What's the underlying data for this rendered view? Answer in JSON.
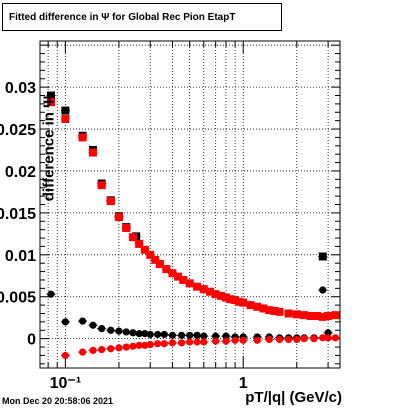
{
  "chart_data": {
    "type": "scatter",
    "title": "Fitted difference in  Ψ  for Global Rec Pion EtapT",
    "xlabel": "pT/|q| (GeV/c)",
    "ylabel": "difference in  Ψ",
    "xscale": "log",
    "xlim": [
      0.072,
      3.5
    ],
    "ylim": [
      -0.0035,
      0.0355
    ],
    "grid": true,
    "x_tick_labels": [
      "10⁻¹",
      "1"
    ],
    "x_tick_values": [
      0.1,
      1
    ],
    "y_tick_labels": [
      "0",
      "0.005",
      "0.01",
      "0.015",
      "0.02",
      "0.025",
      "0.03"
    ],
    "y_tick_values": [
      0,
      0.005,
      0.01,
      0.015,
      0.02,
      0.025,
      0.03
    ],
    "series": [
      {
        "color": "#000000",
        "marker": "square",
        "x": [
          0.083,
          0.1,
          0.125,
          0.143,
          0.16,
          0.18,
          0.2,
          0.22,
          0.25,
          2.8
        ],
        "y": [
          0.029,
          0.0272,
          0.0242,
          0.0225,
          0.0185,
          0.0165,
          0.0146,
          0.0133,
          0.0122,
          0.0098
        ]
      },
      {
        "color": "#ff0000",
        "marker": "square",
        "x": [
          0.083,
          0.1,
          0.125,
          0.143,
          0.16,
          0.18,
          0.2,
          0.22,
          0.24,
          0.26,
          0.28,
          0.3,
          0.32,
          0.34,
          0.37,
          0.4,
          0.43,
          0.46,
          0.5,
          0.55,
          0.6,
          0.65,
          0.7,
          0.75,
          0.8,
          0.85,
          0.9,
          0.95,
          1.0,
          1.1,
          1.2,
          1.3,
          1.4,
          1.5,
          1.6,
          1.8,
          2.0,
          2.2,
          2.4,
          2.6,
          2.8,
          3.0,
          3.3
        ],
        "y": [
          0.0282,
          0.0262,
          0.024,
          0.0222,
          0.0183,
          0.0164,
          0.0145,
          0.0132,
          0.0121,
          0.0113,
          0.0106,
          0.01,
          0.0094,
          0.0089,
          0.0083,
          0.0078,
          0.0074,
          0.007,
          0.0066,
          0.0062,
          0.0059,
          0.0056,
          0.0053,
          0.0051,
          0.0049,
          0.0047,
          0.0046,
          0.0044,
          0.0043,
          0.004,
          0.0038,
          0.0036,
          0.0034,
          0.0033,
          0.0032,
          0.003,
          0.0029,
          0.0028,
          0.0027,
          0.0027,
          0.0026,
          0.0027,
          0.0028
        ]
      },
      {
        "color": "#000000",
        "marker": "circle",
        "x": [
          0.083,
          0.1,
          0.125,
          0.143,
          0.16,
          0.18,
          0.2,
          0.22,
          0.24,
          0.26,
          0.28,
          0.3,
          0.33,
          0.36,
          0.4,
          0.45,
          0.5,
          0.55,
          0.6,
          0.7,
          0.8,
          0.9,
          1.0,
          1.2,
          1.4,
          1.6,
          1.8,
          2.0,
          2.2,
          2.5,
          2.8,
          3.0
        ],
        "y": [
          0.0053,
          0.002,
          0.0021,
          0.0016,
          0.0012,
          0.001,
          0.0009,
          0.0008,
          0.0007,
          0.0006,
          0.0006,
          0.0005,
          0.0005,
          0.0005,
          0.0004,
          0.0004,
          0.0004,
          0.0004,
          0.0003,
          0.0003,
          0.0003,
          0.0002,
          0.0002,
          0.0002,
          0.0002,
          0.0001,
          0.0001,
          0.0001,
          0.0001,
          0.0001,
          0.0058,
          0.0007
        ]
      },
      {
        "color": "#ff0000",
        "marker": "circle",
        "x": [
          0.1,
          0.125,
          0.143,
          0.16,
          0.18,
          0.2,
          0.22,
          0.24,
          0.26,
          0.28,
          0.3,
          0.33,
          0.36,
          0.4,
          0.45,
          0.5,
          0.55,
          0.6,
          0.7,
          0.8,
          0.9,
          1.0,
          1.2,
          1.4,
          1.6,
          1.8,
          2.0,
          2.2,
          2.5,
          2.8,
          3.0,
          3.3
        ],
        "y": [
          -0.002,
          -0.0016,
          -0.0014,
          -0.0013,
          -0.0012,
          -0.0011,
          -0.001,
          -0.0009,
          -0.0008,
          -0.0008,
          -0.0007,
          -0.0006,
          -0.0006,
          -0.0005,
          -0.0005,
          -0.0004,
          -0.0004,
          -0.0004,
          -0.0003,
          -0.0003,
          -0.0002,
          -0.0002,
          -0.0002,
          -0.0001,
          -0.0001,
          -0.0001,
          -0.0001,
          0.0,
          0.0,
          0.0001,
          0.0001,
          0.0001
        ]
      }
    ]
  },
  "footer": {
    "datestamp": "Mon Dec 20 20:58:06 2021"
  }
}
